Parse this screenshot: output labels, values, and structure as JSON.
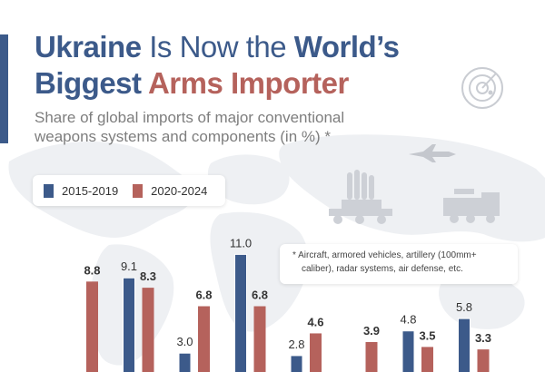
{
  "title": {
    "line1": {
      "bold1": "Ukraine",
      "normal": " Is Now the ",
      "bold2": "World’s"
    },
    "line2": {
      "bold1": "Biggest ",
      "bold2": "Arms Importer"
    }
  },
  "subtitle": "Share of global imports of major conventional weapons systems and components (in %) *",
  "legend": [
    {
      "label": "2015-2019",
      "color": "#3c5a8a"
    },
    {
      "label": "2020-2024",
      "color": "#b5625c"
    }
  ],
  "note": "*  Aircraft, armored vehicles, artillery (100mm+ caliber), radar systems, air defense, etc.",
  "colors": {
    "navy": "#3c5a8a",
    "red": "#b5625c",
    "map": "#eef0f3"
  },
  "icons": [
    "radar-icon",
    "fighter-jet-icon",
    "missile-launcher-icon",
    "military-truck-icon",
    "world-map"
  ],
  "chart_data": {
    "type": "bar",
    "categories": [
      "",
      "",
      "",
      "",
      "",
      "",
      "",
      "",
      ""
    ],
    "series": [
      {
        "name": "2015-2019",
        "values": [
          null,
          9.1,
          3.0,
          11.0,
          2.8,
          null,
          4.8,
          5.8,
          null
        ],
        "labels": [
          "",
          "9.1",
          "3.0",
          "11.0",
          "2.8",
          "",
          "4.8",
          "5.8",
          ""
        ]
      },
      {
        "name": "2020-2024",
        "values": [
          8.8,
          8.3,
          6.8,
          6.8,
          4.6,
          3.9,
          3.5,
          3.3,
          null
        ],
        "labels": [
          "8.8",
          "8.3",
          "6.8",
          "6.8",
          "4.6",
          "3.9",
          "3.5",
          "3.3",
          ""
        ]
      }
    ],
    "title": "Ukraine Is Now the World’s Biggest Arms Importer",
    "subtitle": "Share of global imports of major conventional weapons systems and components (in %) *",
    "xlabel": "",
    "ylabel": "",
    "grid": false,
    "legend_position": "top-left"
  }
}
